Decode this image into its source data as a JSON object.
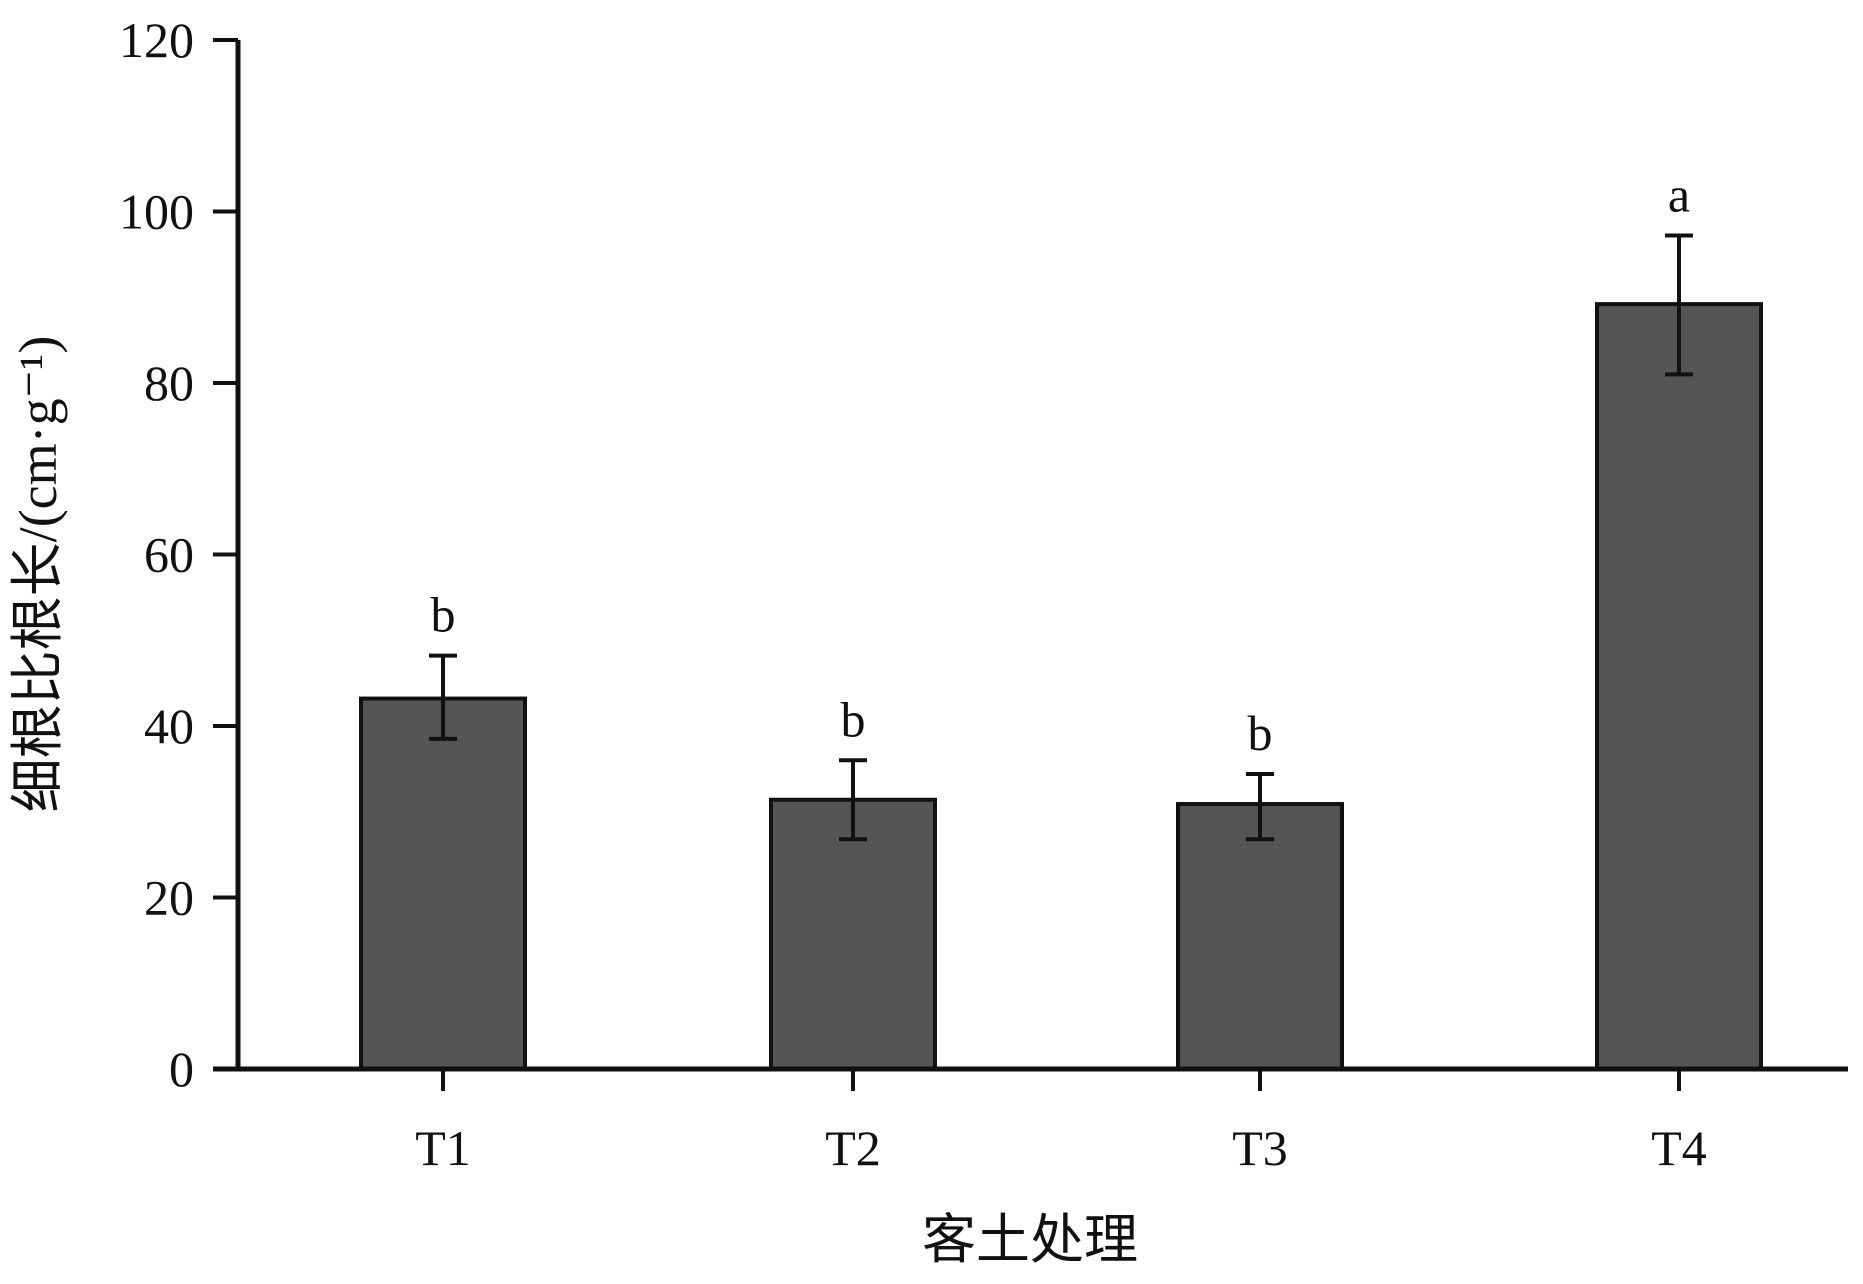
{
  "chart_data": {
    "type": "bar",
    "title": "",
    "xlabel": "客土处理",
    "ylabel": "细根比根长/(cm·g⁻¹)",
    "ylim": [
      0,
      120
    ],
    "yticks": [
      0,
      20,
      40,
      60,
      80,
      100,
      120
    ],
    "categories": [
      "T1",
      "T2",
      "T3",
      "T4"
    ],
    "values": [
      43.2,
      31.4,
      30.9,
      89.2
    ],
    "error_upper": [
      48.2,
      36.0,
      34.4,
      97.2
    ],
    "error_lower": [
      38.5,
      26.8,
      26.8,
      81.0
    ],
    "significance": [
      "b",
      "b",
      "b",
      "a"
    ],
    "bar_color": "#555555",
    "edge_color": "#111111",
    "grid": false,
    "legend": "none"
  }
}
